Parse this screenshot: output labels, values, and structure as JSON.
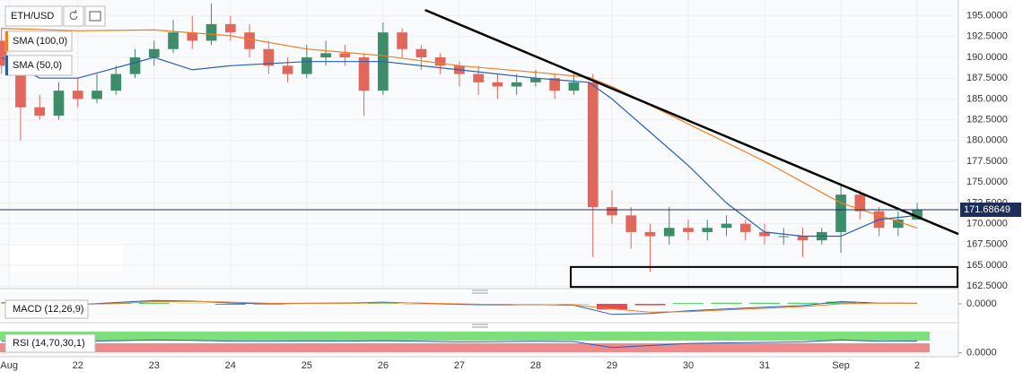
{
  "chart_data": [
    {
      "type": "candlestick",
      "title": "ETH/USD",
      "x": [
        0,
        0.25,
        0.5,
        0.75,
        1,
        1.25,
        1.5,
        1.75,
        2,
        2.25,
        2.5,
        2.75,
        3,
        3.25,
        3.5,
        3.75,
        4,
        4.25,
        4.5,
        4.75,
        5,
        5.25,
        5.5,
        5.75,
        6,
        6.25,
        6.5,
        6.75,
        7,
        7.25,
        7.5,
        7.75,
        8,
        8.25,
        8.5,
        8.75,
        9,
        9.25,
        9.5,
        9.75,
        10,
        10.25,
        10.5,
        10.75,
        11,
        11.25,
        11.5,
        11.75,
        12
      ],
      "open": [
        192,
        189,
        184,
        183,
        186,
        185,
        186,
        188,
        190,
        191,
        193,
        192,
        194,
        193,
        191,
        189,
        188,
        190,
        190.5,
        190,
        186,
        193,
        191,
        190,
        189,
        188,
        187,
        186.5,
        187,
        187.5,
        186,
        187,
        172,
        171,
        169,
        168.5,
        169.5,
        169,
        169.5,
        170,
        169,
        168.5,
        168.5,
        168,
        169,
        173.5,
        171.5,
        169.5,
        170.5
      ],
      "high": [
        193.5,
        190,
        185.5,
        187,
        187.5,
        188,
        189,
        191,
        192,
        194.5,
        195,
        196.5,
        195,
        194,
        192,
        190,
        191.5,
        192,
        191.5,
        190.5,
        194.2,
        193.5,
        191.5,
        190.5,
        189.5,
        189,
        188,
        188,
        188.5,
        188,
        188,
        188,
        174,
        172,
        170,
        172,
        170.5,
        170.5,
        171,
        170.5,
        170,
        169.5,
        169.5,
        169.5,
        174.8,
        174,
        172,
        171.5,
        172.5
      ],
      "low": [
        188,
        180,
        182.5,
        182.5,
        184,
        184.5,
        185.5,
        187.5,
        189,
        190.5,
        191,
        191.5,
        192,
        190,
        188,
        187,
        187.5,
        189,
        189,
        183,
        185.5,
        190,
        188.5,
        188,
        186.5,
        185.5,
        185,
        185.5,
        186.5,
        185,
        185.5,
        166,
        170,
        167,
        164.2,
        167.5,
        168,
        168,
        168.5,
        168,
        167.5,
        167.5,
        166,
        167.5,
        166.5,
        170.5,
        168.5,
        168.5,
        170.5
      ],
      "close": [
        189,
        184,
        183,
        186,
        185,
        186,
        188,
        190,
        191,
        193,
        192,
        194,
        193,
        191,
        189,
        188,
        190,
        190.5,
        190,
        186,
        193,
        191,
        190,
        189,
        188,
        187,
        186.5,
        187,
        187.5,
        186,
        187,
        172,
        171,
        169,
        168.5,
        169.5,
        169,
        169.5,
        170,
        169,
        168.5,
        168.5,
        168,
        169,
        173.5,
        171.5,
        169.5,
        170.5,
        171.7
      ],
      "up_color": "#3d8c6a",
      "down_color": "#e0675a",
      "series": [
        {
          "name": "SMA (100,0)",
          "color": "#f07f23",
          "x": [
            0,
            1,
            2,
            3,
            4,
            5,
            6,
            7,
            7.7,
            8,
            9,
            10,
            11,
            12
          ],
          "values": [
            193.5,
            193.2,
            193.3,
            192.6,
            191,
            190.2,
            189,
            188.2,
            187.6,
            186.5,
            182,
            177.5,
            172.5,
            169.5
          ]
        },
        {
          "name": "SMA (50,0)",
          "color": "#2a5fb0",
          "x": [
            0,
            0.5,
            1,
            2,
            2.5,
            3,
            4,
            5,
            6,
            7,
            7.7,
            8,
            8.5,
            9,
            9.5,
            10,
            10.5,
            11,
            11.5,
            12
          ],
          "values": [
            190,
            187.5,
            187.5,
            190,
            188.5,
            189,
            189.5,
            189.5,
            188.5,
            187.5,
            187,
            185,
            181,
            177,
            172.5,
            169,
            168.5,
            168.5,
            170.5,
            171
          ]
        }
      ],
      "last_price": 171.68649,
      "trendline": {
        "x": [
          5.55,
          12.54
        ],
        "y": [
          195.7,
          168.76
        ]
      },
      "box": {
        "x": [
          7.46,
          12.54
        ],
        "y": [
          162.4,
          164.8
        ]
      },
      "xlim": [
        -0.02,
        12.54
      ],
      "ylim": [
        162.2,
        196.9
      ],
      "yticks": [
        {
          "value": 162.5,
          "label": "162.5000"
        },
        {
          "value": 165,
          "label": "165.0000"
        },
        {
          "value": 167.5,
          "label": "167.5000"
        },
        {
          "value": 170,
          "label": "170.0000"
        },
        {
          "value": 172.5,
          "label": "172.5000"
        },
        {
          "value": 175,
          "label": "175.0000"
        },
        {
          "value": 177.5,
          "label": "177.5000"
        },
        {
          "value": 180,
          "label": "180.0000"
        },
        {
          "value": 182.5,
          "label": "182.5000"
        },
        {
          "value": 185,
          "label": "185.0000"
        },
        {
          "value": 187.5,
          "label": "187.5000"
        },
        {
          "value": 190,
          "label": "190.0000"
        },
        {
          "value": 192.5,
          "label": "192.5000"
        },
        {
          "value": 195,
          "label": "195.0000"
        }
      ],
      "xticks": [
        {
          "value": 0.1,
          "label": "Aug"
        },
        {
          "value": 1,
          "label": "22"
        },
        {
          "value": 2,
          "label": "23"
        },
        {
          "value": 3,
          "label": "24"
        },
        {
          "value": 4,
          "label": "25"
        },
        {
          "value": 5,
          "label": "26"
        },
        {
          "value": 6,
          "label": "27"
        },
        {
          "value": 7,
          "label": "28"
        },
        {
          "value": 8,
          "label": "29"
        },
        {
          "value": 9,
          "label": "30"
        },
        {
          "value": 10,
          "label": "31"
        },
        {
          "value": 11,
          "label": "Sep"
        },
        {
          "value": 12,
          "label": "2"
        }
      ],
      "grid": true
    },
    {
      "type": "macd",
      "name": "MACD (12,26,9)",
      "x": [
        0,
        0.5,
        1,
        1.5,
        2,
        2.5,
        3,
        3.5,
        4,
        4.5,
        5,
        5.5,
        6,
        6.5,
        7,
        7.5,
        8,
        8.5,
        9,
        9.5,
        10,
        10.5,
        11,
        11.5,
        12
      ],
      "macd": [
        0.5,
        -0.5,
        -0.3,
        0.5,
        1.2,
        1.0,
        0.3,
        0,
        0.2,
        0.3,
        0.6,
        0.2,
        -0.2,
        -0.4,
        -0.3,
        -0.5,
        -3.8,
        -3.5,
        -2.5,
        -1.8,
        -1.2,
        -0.6,
        0.8,
        0.3,
        0.2
      ],
      "signal": [
        0.4,
        0.1,
        -0.2,
        0.1,
        0.8,
        0.9,
        0.6,
        0.2,
        0.2,
        0.2,
        0.4,
        0.3,
        0,
        -0.3,
        -0.3,
        -0.4,
        -1.8,
        -3.0,
        -2.8,
        -2.2,
        -1.6,
        -1.0,
        0,
        0.3,
        0.2
      ],
      "histogram": [
        0.1,
        -0.6,
        -0.1,
        0.4,
        0.4,
        0.1,
        -0.3,
        -0.2,
        0,
        0.1,
        0.2,
        -0.1,
        -0.2,
        -0.1,
        0,
        -0.1,
        -2.0,
        -0.5,
        0.3,
        0.4,
        0.4,
        0.4,
        0.8,
        0,
        0
      ],
      "macd_color": "#2a5fb0",
      "signal_color": "#f07f23",
      "up_color": "#2ecc40",
      "down_color": "#e02020",
      "ylim": [
        -4.2,
        4.2
      ],
      "yticks": [
        {
          "value": 0,
          "label": "0.0000"
        }
      ]
    },
    {
      "type": "rsi",
      "name": "RSI (14,70,30,1)",
      "x": [
        0,
        0.5,
        1,
        1.5,
        2,
        2.5,
        3,
        3.5,
        4,
        4.5,
        5,
        5.5,
        6,
        6.5,
        7,
        7.5,
        8,
        8.5,
        9,
        9.5,
        10,
        10.5,
        11,
        11.5,
        12
      ],
      "values": [
        55,
        52,
        55,
        58,
        62,
        60,
        56,
        55,
        57,
        56,
        58,
        55,
        52,
        53,
        55,
        54,
        25,
        35,
        45,
        48,
        50,
        52,
        62,
        55,
        57
      ],
      "color": "#2a5fb0",
      "ylim": [
        -10,
        110
      ],
      "yticks": [
        {
          "value": 0,
          "label": "0.0000"
        }
      ]
    }
  ]
}
